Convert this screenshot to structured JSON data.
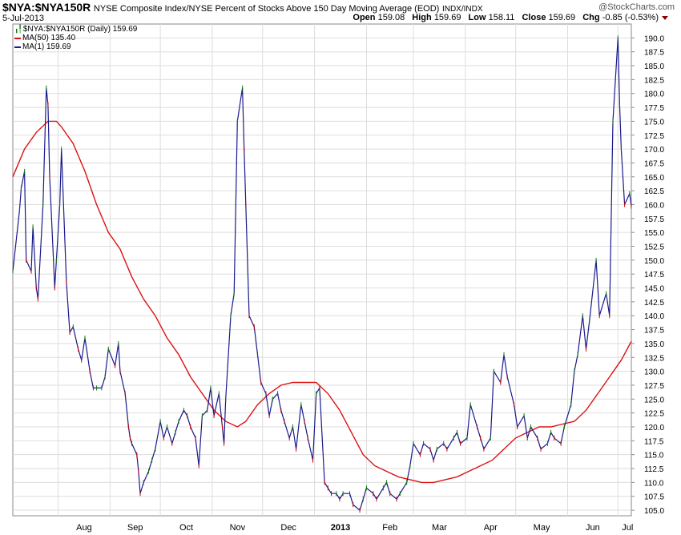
{
  "header": {
    "symbol": "$NYA:$NYA150R",
    "description": "NYSE Composite Index/NYSE Percent of Stocks Above 150 Day Moving Average (EOD)",
    "exchange": "INDX/INDX",
    "date": "5-Jul-2013",
    "brand": "@StockCharts.com",
    "open_label": "Open",
    "open": "159.08",
    "high_label": "High",
    "high": "159.69",
    "low_label": "Low",
    "low": "158.11",
    "close_label": "Close",
    "close": "159.69",
    "chg_label": "Chg",
    "chg": "-0.85 (-0.53%)",
    "chg_arrow": "down-arrow-icon",
    "chg_color": "#8b0000"
  },
  "legend": {
    "price": "$NYA:$NYA150R (Daily) 159.69",
    "ma50": "MA(50) 135.40",
    "ma1": "MA(1) 159.69"
  },
  "colors": {
    "price": "#1a1a8c",
    "ma50": "#dd1111",
    "ma1": "#1a1a8c",
    "up": "#0a7a0a",
    "down": "#cc0000",
    "grid": "#dddddd"
  },
  "chart_data": {
    "type": "line",
    "yaxis_side": "right",
    "ylim": [
      104,
      192.5
    ],
    "y_ticks": [
      "105.0",
      "107.5",
      "110.0",
      "112.5",
      "115.0",
      "117.5",
      "120.0",
      "122.5",
      "125.0",
      "127.5",
      "130.0",
      "132.5",
      "135.0",
      "137.5",
      "140.0",
      "142.5",
      "145.0",
      "147.5",
      "150.0",
      "152.5",
      "155.0",
      "157.5",
      "160.0",
      "162.5",
      "165.0",
      "167.5",
      "170.0",
      "172.5",
      "175.0",
      "177.5",
      "180.0",
      "182.5",
      "185.0",
      "187.5",
      "190.0"
    ],
    "x_ticks": [
      "Aug",
      "Sep",
      "Oct",
      "Nov",
      "Dec",
      "2013",
      "Feb",
      "Mar",
      "Apr",
      "May",
      "Jun",
      "Jul"
    ],
    "x_range": [
      "2012-07-05",
      "2013-07-09"
    ],
    "grid": true,
    "legend_position": "top-left",
    "series": [
      {
        "name": "MA(1)",
        "points": [
          [
            "2012-07-05",
            148
          ],
          [
            "2012-07-09",
            159
          ],
          [
            "2012-07-10",
            163
          ],
          [
            "2012-07-12",
            166
          ],
          [
            "2012-07-13",
            150
          ],
          [
            "2012-07-16",
            148
          ],
          [
            "2012-07-17",
            156
          ],
          [
            "2012-07-19",
            145
          ],
          [
            "2012-07-20",
            143
          ],
          [
            "2012-07-23",
            160
          ],
          [
            "2012-07-25",
            181
          ],
          [
            "2012-07-26",
            178
          ],
          [
            "2012-07-27",
            165
          ],
          [
            "2012-07-30",
            145
          ],
          [
            "2012-07-31",
            150
          ],
          [
            "2012-08-02",
            160
          ],
          [
            "2012-08-03",
            170
          ],
          [
            "2012-08-06",
            146
          ],
          [
            "2012-08-08",
            137
          ],
          [
            "2012-08-10",
            138
          ],
          [
            "2012-08-13",
            134
          ],
          [
            "2012-08-15",
            132
          ],
          [
            "2012-08-17",
            136
          ],
          [
            "2012-08-20",
            130
          ],
          [
            "2012-08-22",
            127
          ],
          [
            "2012-08-24",
            127
          ],
          [
            "2012-08-27",
            127
          ],
          [
            "2012-08-29",
            129
          ],
          [
            "2012-08-31",
            134
          ],
          [
            "2012-09-04",
            131
          ],
          [
            "2012-09-06",
            135
          ],
          [
            "2012-09-07",
            130
          ],
          [
            "2012-09-10",
            126
          ],
          [
            "2012-09-12",
            120
          ],
          [
            "2012-09-13",
            118
          ],
          [
            "2012-09-14",
            117
          ],
          [
            "2012-09-17",
            115
          ],
          [
            "2012-09-18",
            112
          ],
          [
            "2012-09-19",
            108
          ],
          [
            "2012-09-21",
            110
          ],
          [
            "2012-09-24",
            112
          ],
          [
            "2012-09-26",
            114
          ],
          [
            "2012-09-28",
            116
          ],
          [
            "2012-10-01",
            121
          ],
          [
            "2012-10-03",
            118
          ],
          [
            "2012-10-05",
            120
          ],
          [
            "2012-10-08",
            117
          ],
          [
            "2012-10-10",
            119
          ],
          [
            "2012-10-12",
            121
          ],
          [
            "2012-10-15",
            123
          ],
          [
            "2012-10-17",
            122
          ],
          [
            "2012-10-19",
            120
          ],
          [
            "2012-10-22",
            118
          ],
          [
            "2012-10-24",
            113
          ],
          [
            "2012-10-26",
            122
          ],
          [
            "2012-10-29",
            123
          ],
          [
            "2012-10-31",
            127
          ],
          [
            "2012-11-02",
            122
          ],
          [
            "2012-11-05",
            126
          ],
          [
            "2012-11-07",
            120
          ],
          [
            "2012-11-08",
            117
          ],
          [
            "2012-11-09",
            125
          ],
          [
            "2012-11-12",
            140
          ],
          [
            "2012-11-14",
            144
          ],
          [
            "2012-11-16",
            175
          ],
          [
            "2012-11-19",
            181
          ],
          [
            "2012-11-20",
            170
          ],
          [
            "2012-11-21",
            160
          ],
          [
            "2012-11-23",
            140
          ],
          [
            "2012-11-26",
            138
          ],
          [
            "2012-11-28",
            133
          ],
          [
            "2012-11-30",
            128
          ],
          [
            "2012-12-03",
            126
          ],
          [
            "2012-12-05",
            122
          ],
          [
            "2012-12-07",
            125
          ],
          [
            "2012-12-10",
            126
          ],
          [
            "2012-12-12",
            123
          ],
          [
            "2012-12-14",
            121
          ],
          [
            "2012-12-17",
            118
          ],
          [
            "2012-12-19",
            120
          ],
          [
            "2012-12-21",
            116
          ],
          [
            "2012-12-24",
            124
          ],
          [
            "2012-12-26",
            121
          ],
          [
            "2012-12-28",
            118
          ],
          [
            "2012-12-31",
            114
          ],
          [
            "2013-01-02",
            126
          ],
          [
            "2013-01-04",
            127
          ],
          [
            "2013-01-07",
            110
          ],
          [
            "2013-01-09",
            109
          ],
          [
            "2013-01-11",
            108
          ],
          [
            "2013-01-14",
            108
          ],
          [
            "2013-01-16",
            107
          ],
          [
            "2013-01-18",
            108
          ],
          [
            "2013-01-22",
            108
          ],
          [
            "2013-01-24",
            106
          ],
          [
            "2013-01-28",
            105
          ],
          [
            "2013-01-30",
            107
          ],
          [
            "2013-02-01",
            109
          ],
          [
            "2013-02-05",
            108
          ],
          [
            "2013-02-07",
            107
          ],
          [
            "2013-02-11",
            109
          ],
          [
            "2013-02-13",
            110
          ],
          [
            "2013-02-15",
            108
          ],
          [
            "2013-02-19",
            107
          ],
          [
            "2013-02-21",
            108
          ],
          [
            "2013-02-25",
            110
          ],
          [
            "2013-02-27",
            113
          ],
          [
            "2013-03-01",
            117
          ],
          [
            "2013-03-05",
            115
          ],
          [
            "2013-03-07",
            117
          ],
          [
            "2013-03-11",
            116
          ],
          [
            "2013-03-13",
            114
          ],
          [
            "2013-03-15",
            116
          ],
          [
            "2013-03-19",
            117
          ],
          [
            "2013-03-21",
            116
          ],
          [
            "2013-03-25",
            118
          ],
          [
            "2013-03-27",
            119
          ],
          [
            "2013-03-29",
            117
          ],
          [
            "2013-04-02",
            118
          ],
          [
            "2013-04-04",
            124
          ],
          [
            "2013-04-08",
            120
          ],
          [
            "2013-04-10",
            118
          ],
          [
            "2013-04-12",
            116
          ],
          [
            "2013-04-16",
            118
          ],
          [
            "2013-04-18",
            130
          ],
          [
            "2013-04-22",
            128
          ],
          [
            "2013-04-24",
            133
          ],
          [
            "2013-04-26",
            129
          ],
          [
            "2013-04-30",
            124
          ],
          [
            "2013-05-02",
            120
          ],
          [
            "2013-05-06",
            122
          ],
          [
            "2013-05-08",
            118
          ],
          [
            "2013-05-10",
            120
          ],
          [
            "2013-05-14",
            118
          ],
          [
            "2013-05-16",
            116
          ],
          [
            "2013-05-20",
            117
          ],
          [
            "2013-05-22",
            119
          ],
          [
            "2013-05-24",
            118
          ],
          [
            "2013-05-28",
            117
          ],
          [
            "2013-05-30",
            120
          ],
          [
            "2013-06-03",
            124
          ],
          [
            "2013-06-05",
            130
          ],
          [
            "2013-06-07",
            133
          ],
          [
            "2013-06-10",
            140
          ],
          [
            "2013-06-12",
            134
          ],
          [
            "2013-06-14",
            139
          ],
          [
            "2013-06-18",
            150
          ],
          [
            "2013-06-20",
            140
          ],
          [
            "2013-06-24",
            144
          ],
          [
            "2013-06-26",
            140
          ],
          [
            "2013-06-28",
            175
          ],
          [
            "2013-07-01",
            190
          ],
          [
            "2013-07-02",
            178
          ],
          [
            "2013-07-03",
            170
          ],
          [
            "2013-07-05",
            160
          ],
          [
            "2013-07-08",
            162
          ],
          [
            "2013-07-09",
            159.69
          ]
        ]
      },
      {
        "name": "MA(50)",
        "points": [
          [
            "2012-07-05",
            165
          ],
          [
            "2012-07-12",
            170
          ],
          [
            "2012-07-19",
            173
          ],
          [
            "2012-07-26",
            175
          ],
          [
            "2012-07-31",
            175
          ],
          [
            "2012-08-03",
            174
          ],
          [
            "2012-08-10",
            171
          ],
          [
            "2012-08-17",
            166
          ],
          [
            "2012-08-24",
            160
          ],
          [
            "2012-08-31",
            155
          ],
          [
            "2012-09-07",
            152
          ],
          [
            "2012-09-14",
            147
          ],
          [
            "2012-09-21",
            143
          ],
          [
            "2012-09-28",
            140
          ],
          [
            "2012-10-05",
            136
          ],
          [
            "2012-10-12",
            133
          ],
          [
            "2012-10-19",
            129
          ],
          [
            "2012-10-26",
            126
          ],
          [
            "2012-11-02",
            123
          ],
          [
            "2012-11-09",
            121
          ],
          [
            "2012-11-16",
            120
          ],
          [
            "2012-11-21",
            121
          ],
          [
            "2012-11-28",
            124
          ],
          [
            "2012-12-05",
            126
          ],
          [
            "2012-12-12",
            127.5
          ],
          [
            "2012-12-19",
            128
          ],
          [
            "2012-12-26",
            128
          ],
          [
            "2013-01-02",
            128
          ],
          [
            "2013-01-09",
            126
          ],
          [
            "2013-01-16",
            123
          ],
          [
            "2013-01-23",
            119
          ],
          [
            "2013-01-30",
            115
          ],
          [
            "2013-02-06",
            113
          ],
          [
            "2013-02-13",
            112
          ],
          [
            "2013-02-20",
            111
          ],
          [
            "2013-02-27",
            110.5
          ],
          [
            "2013-03-06",
            110
          ],
          [
            "2013-03-13",
            110
          ],
          [
            "2013-03-20",
            110.5
          ],
          [
            "2013-03-27",
            111
          ],
          [
            "2013-04-03",
            112
          ],
          [
            "2013-04-10",
            113
          ],
          [
            "2013-04-17",
            114
          ],
          [
            "2013-04-24",
            116
          ],
          [
            "2013-05-01",
            118
          ],
          [
            "2013-05-08",
            119
          ],
          [
            "2013-05-15",
            120
          ],
          [
            "2013-05-22",
            120
          ],
          [
            "2013-05-29",
            120.5
          ],
          [
            "2013-06-05",
            121
          ],
          [
            "2013-06-12",
            123
          ],
          [
            "2013-06-19",
            126
          ],
          [
            "2013-06-26",
            129
          ],
          [
            "2013-07-03",
            132
          ],
          [
            "2013-07-09",
            135.4
          ]
        ]
      }
    ]
  }
}
